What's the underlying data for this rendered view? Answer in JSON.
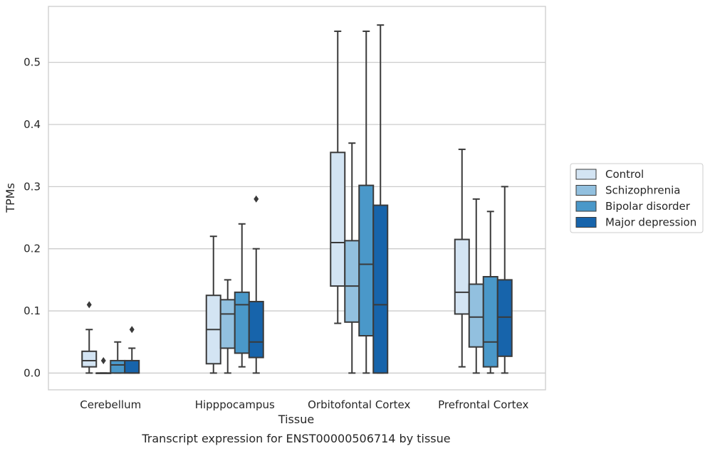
{
  "chart_data": {
    "type": "box",
    "xlabel": "Tissue",
    "ylabel": "TPMs",
    "caption": "Transcript expression for ENST00000506714 by tissue",
    "ylim": [
      -0.027,
      0.59
    ],
    "yticks": [
      0.0,
      0.1,
      0.2,
      0.3,
      0.4,
      0.5
    ],
    "ytick_labels": [
      "0.0",
      "0.1",
      "0.2",
      "0.3",
      "0.4",
      "0.5"
    ],
    "grid": "horizontal",
    "legend_position": "right",
    "categories": [
      "Cerebellum",
      "Hipppocampus",
      "Orbitofontal Cortex",
      "Prefrontal Cortex"
    ],
    "series": [
      {
        "name": "Control",
        "color": "#d3e4f3",
        "boxes": [
          {
            "min": 0.0,
            "q1": 0.01,
            "median": 0.02,
            "q3": 0.035,
            "max": 0.07,
            "outliers": [
              0.11
            ]
          },
          {
            "min": 0.0,
            "q1": 0.015,
            "median": 0.07,
            "q3": 0.125,
            "max": 0.22,
            "outliers": []
          },
          {
            "min": 0.08,
            "q1": 0.14,
            "median": 0.21,
            "q3": 0.355,
            "max": 0.55,
            "outliers": []
          },
          {
            "min": 0.01,
            "q1": 0.095,
            "median": 0.13,
            "q3": 0.215,
            "max": 0.36,
            "outliers": []
          }
        ]
      },
      {
        "name": "Schizophrenia",
        "color": "#92c0df",
        "boxes": [
          {
            "min": 0.0,
            "q1": 0.0,
            "median": 0.0,
            "q3": 0.0,
            "max": 0.0,
            "outliers": [
              0.02
            ]
          },
          {
            "min": 0.0,
            "q1": 0.04,
            "median": 0.095,
            "q3": 0.118,
            "max": 0.15,
            "outliers": []
          },
          {
            "min": 0.0,
            "q1": 0.082,
            "median": 0.14,
            "q3": 0.213,
            "max": 0.37,
            "outliers": []
          },
          {
            "min": 0.0,
            "q1": 0.042,
            "median": 0.09,
            "q3": 0.143,
            "max": 0.28,
            "outliers": []
          }
        ]
      },
      {
        "name": "Bipolar disorder",
        "color": "#4a98c9",
        "boxes": [
          {
            "min": 0.0,
            "q1": 0.0,
            "median": 0.013,
            "q3": 0.02,
            "max": 0.05,
            "outliers": []
          },
          {
            "min": 0.01,
            "q1": 0.032,
            "median": 0.11,
            "q3": 0.13,
            "max": 0.24,
            "outliers": []
          },
          {
            "min": 0.0,
            "q1": 0.06,
            "median": 0.175,
            "q3": 0.302,
            "max": 0.55,
            "outliers": []
          },
          {
            "min": 0.0,
            "q1": 0.01,
            "median": 0.05,
            "q3": 0.155,
            "max": 0.26,
            "outliers": []
          }
        ]
      },
      {
        "name": "Major depression",
        "color": "#1764ab",
        "boxes": [
          {
            "min": 0.0,
            "q1": 0.0,
            "median": 0.0,
            "q3": 0.02,
            "max": 0.04,
            "outliers": [
              0.07
            ]
          },
          {
            "min": 0.0,
            "q1": 0.025,
            "median": 0.05,
            "q3": 0.115,
            "max": 0.2,
            "outliers": [
              0.28
            ]
          },
          {
            "min": 0.0,
            "q1": 0.0,
            "median": 0.11,
            "q3": 0.27,
            "max": 0.56,
            "outliers": []
          },
          {
            "min": 0.0,
            "q1": 0.027,
            "median": 0.09,
            "q3": 0.15,
            "max": 0.3,
            "outliers": []
          }
        ]
      }
    ]
  }
}
